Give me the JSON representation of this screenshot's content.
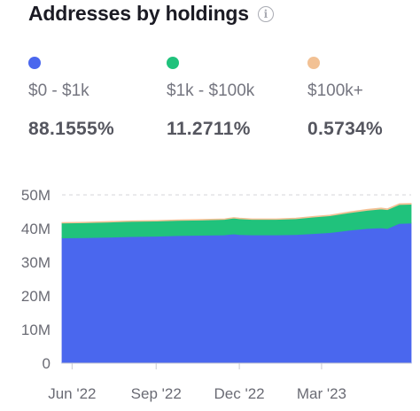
{
  "title": "Addresses by holdings",
  "icons": {
    "info": "info-icon"
  },
  "legend": [
    {
      "color": "#4a67ee",
      "label": "$0 - $1k",
      "value": "88.1555%"
    },
    {
      "color": "#20c27c",
      "label": "$1k - $100k",
      "value": "11.2711%"
    },
    {
      "color": "#f2c194",
      "label": "$100k+",
      "value": "0.5734%"
    }
  ],
  "chart_data": {
    "type": "area",
    "stacked": true,
    "ylim": [
      0,
      50
    ],
    "y_ticks": [
      0,
      10,
      20,
      30,
      40,
      50
    ],
    "y_tick_labels": [
      "0",
      "10M",
      "20M",
      "30M",
      "40M",
      "50M"
    ],
    "x_ticks": [
      "2022-06-01",
      "2022-09-01",
      "2022-12-01",
      "2023-03-01"
    ],
    "x_tick_labels": [
      "Jun '22",
      "Sep '22",
      "Dec '22",
      "Mar '23"
    ],
    "grid": "horizontal-dashed",
    "x": [
      "2022-05-21",
      "2022-06-15",
      "2022-07-10",
      "2022-08-05",
      "2022-09-01",
      "2022-09-25",
      "2022-10-20",
      "2022-11-15",
      "2022-11-25",
      "2022-12-01",
      "2022-12-15",
      "2023-01-10",
      "2023-02-01",
      "2023-02-20",
      "2023-03-10",
      "2023-04-01",
      "2023-04-20",
      "2023-05-05",
      "2023-05-12",
      "2023-05-25",
      "2023-06-07"
    ],
    "series": [
      {
        "name": "$0 - $1k",
        "color": "#4a67ee",
        "values": [
          37.2,
          37.3,
          37.4,
          37.6,
          37.7,
          37.9,
          38.0,
          38.1,
          38.4,
          38.2,
          38.1,
          38.1,
          38.2,
          38.5,
          38.8,
          39.5,
          40.0,
          40.2,
          40.0,
          41.5,
          41.6
        ]
      },
      {
        "name": "$1k - $100k",
        "color": "#20c27c",
        "values": [
          4.4,
          4.4,
          4.5,
          4.5,
          4.5,
          4.5,
          4.5,
          4.6,
          4.7,
          4.7,
          4.6,
          4.6,
          4.7,
          4.9,
          5.0,
          5.2,
          5.4,
          5.6,
          5.6,
          5.6,
          5.6
        ]
      },
      {
        "name": "$100k+",
        "color": "#f2c194",
        "values": [
          0.2,
          0.2,
          0.2,
          0.2,
          0.2,
          0.2,
          0.2,
          0.2,
          0.2,
          0.2,
          0.2,
          0.2,
          0.2,
          0.2,
          0.2,
          0.3,
          0.3,
          0.3,
          0.3,
          0.3,
          0.3
        ]
      }
    ]
  }
}
